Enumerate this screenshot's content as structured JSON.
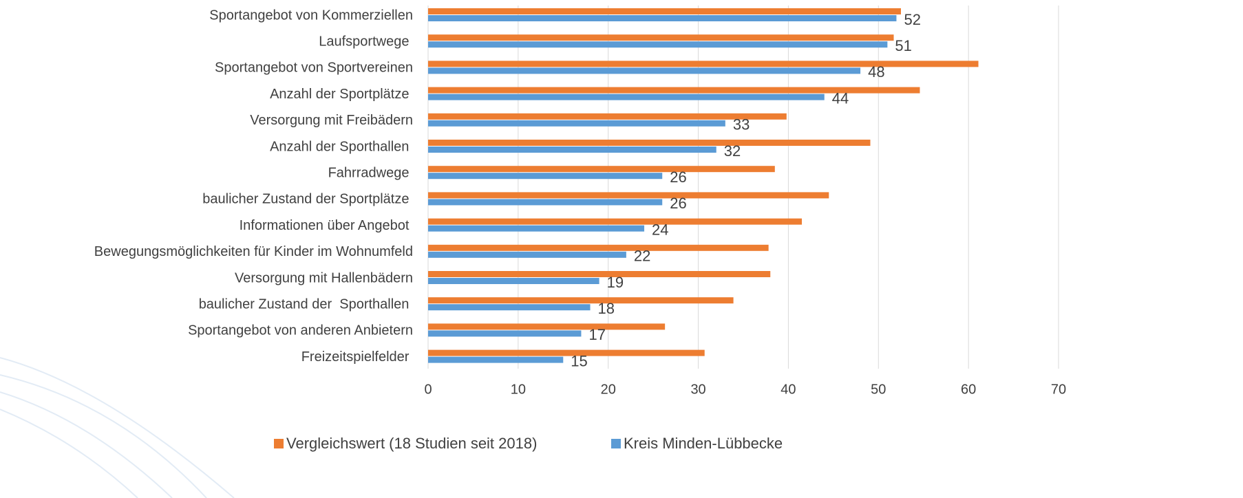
{
  "chart_data": {
    "type": "bar",
    "orientation": "horizontal",
    "categories": [
      "Sportangebot von Kommerziellen",
      "Laufsportwege ",
      "Sportangebot von Sportvereinen",
      "Anzahl der Sportplätze ",
      "Versorgung mit Freibädern",
      "Anzahl der Sporthallen ",
      "Fahrradwege ",
      "baulicher Zustand der Sportplätze ",
      "Informationen über Angebot ",
      "Bewegungsmöglichkeiten für Kinder im Wohnumfeld",
      "Versorgung mit Hallenbädern",
      "baulicher Zustand der  Sporthallen ",
      "Sportangebot von anderen Anbietern",
      "Freizeitspielfelder "
    ],
    "series": [
      {
        "name": "Vergleichswert (18 Studien seit 2018)",
        "color": "#ed7d31",
        "values": [
          52.5,
          51.7,
          61.1,
          54.6,
          39.8,
          49.1,
          38.5,
          44.5,
          41.5,
          37.8,
          38.0,
          33.9,
          26.3,
          30.7
        ]
      },
      {
        "name": "Kreis Minden-Lübbecke",
        "color": "#5b9bd5",
        "values": [
          52,
          51,
          48,
          44,
          33,
          32,
          26,
          26,
          24,
          22,
          19,
          18,
          17,
          15
        ],
        "data_labels": true
      }
    ],
    "xlim": [
      0,
      70
    ],
    "xticks": [
      0,
      10,
      20,
      30,
      40,
      50,
      60,
      70
    ],
    "grid": true
  }
}
